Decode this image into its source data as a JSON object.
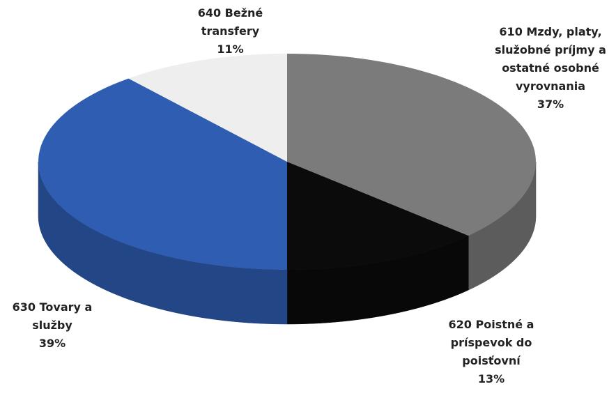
{
  "chart_data": {
    "type": "pie",
    "categories": [
      "610 Mzdy, platy, služobné príjmy a ostatné osobné vyrovnania",
      "620 Poistné a príspevok do poisťovní",
      "630 Tovary a služby",
      "640 Bežné transfery"
    ],
    "values": [
      37,
      13,
      39,
      11
    ],
    "value_labels": [
      "37%",
      "13%",
      "39%",
      "11%"
    ],
    "colors": [
      "#7b7b7b",
      "#0b0b0b",
      "#2f5db2",
      "#eeeeee"
    ]
  }
}
